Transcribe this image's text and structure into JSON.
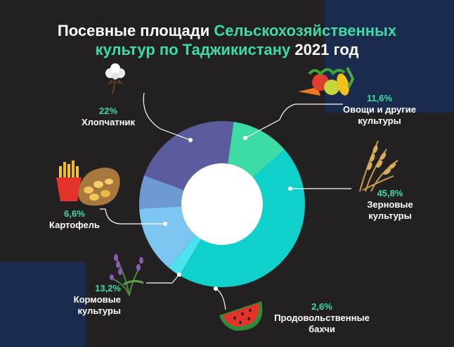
{
  "title": {
    "part1": "Посевные площади",
    "part2": "Сельскохозяйственных",
    "part3": "культур по Таджикистану",
    "part4": "2021 год"
  },
  "colors": {
    "background": "#222021",
    "panel": "#1a2b4d",
    "accent": "#3ddba5",
    "text": "#ffffff"
  },
  "chart_data": {
    "type": "pie",
    "title": "Посевные площади Сельскохозяйственных культур по Таджикистану 2021 год",
    "slices": [
      {
        "label": "Овощи и другие культуры",
        "value": 11.6,
        "display": "11,6%",
        "color": "#3ddba5",
        "icon": "vegetables-icon"
      },
      {
        "label": "Зерновые культуры",
        "value": 45.8,
        "display": "45,8%",
        "color": "#0fd1cb",
        "icon": "wheat-icon"
      },
      {
        "label": "Продовольственные бахчи",
        "value": 2.6,
        "display": "2,6%",
        "color": "#4be3ee",
        "icon": "watermelon-icon"
      },
      {
        "label": "Кормовые культуры",
        "value": 13.2,
        "display": "13,2%",
        "color": "#7cc4f2",
        "icon": "lavender-icon"
      },
      {
        "label": "Картофель",
        "value": 6.6,
        "display": "6,6%",
        "color": "#6e9ad4",
        "icon": "potato-fries-icon"
      },
      {
        "label": "Хлопчатник",
        "value": 22,
        "display": "22%",
        "color": "#5a5c9e",
        "icon": "cotton-icon"
      }
    ]
  },
  "labels": {
    "vegetables": {
      "pct": "11,6%",
      "name": "Овощи и другие\nкультуры"
    },
    "grain": {
      "pct": "45,8%",
      "name": "Зерновые\nкультуры"
    },
    "melons": {
      "pct": "2,6%",
      "name": "Продовольственные\nбахчи"
    },
    "fodder": {
      "pct": "13,2%",
      "name": "Кормовые\nкультуры"
    },
    "potato": {
      "pct": "6,6%",
      "name": "Картофель"
    },
    "cotton": {
      "pct": "22%",
      "name": "Хлопчатник"
    }
  }
}
